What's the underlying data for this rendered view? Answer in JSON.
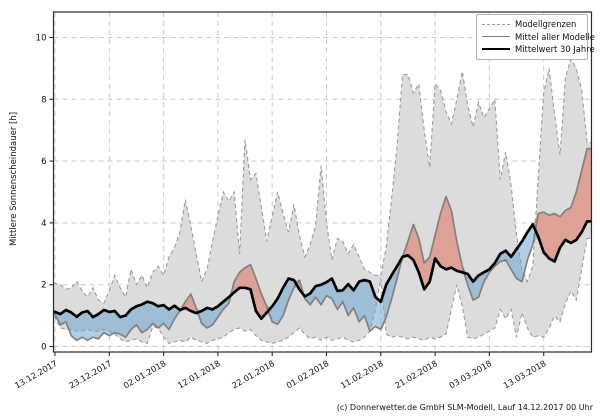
{
  "figure": {
    "footer": "(c) Donnerwetter.de GmbH SLM-Modell, Lauf 14.12.2017 00 Uhr"
  },
  "chart_data": {
    "type": "line",
    "title": "",
    "xlabel": "",
    "ylabel": "Mittlere Sonnenscheindauer [h]",
    "ylim": [
      -0.2,
      11
    ],
    "yticks": [
      0,
      2,
      4,
      6,
      8,
      10
    ],
    "grid": true,
    "x_step": "daily",
    "xtick_labels": [
      "13.12.2017",
      "23.12.2017",
      "02.01.2018",
      "12.01.2018",
      "22.01.2018",
      "01.02.2018",
      "11.02.2018",
      "21.02.2018",
      "03.03.2018",
      "13.03.2018"
    ],
    "xtick_day_indices": [
      0,
      10,
      20,
      30,
      40,
      50,
      60,
      70,
      80,
      90
    ],
    "legend": {
      "position": "upper right",
      "entries": [
        {
          "label": "Modellgrenzen",
          "style": "dashed-gray"
        },
        {
          "label": "Mittel aller Modelle",
          "style": "solid-gray"
        },
        {
          "label": "Mittelwert 30 Jahre",
          "style": "solid-black-thick"
        }
      ]
    },
    "colors": {
      "band_fill": "#dcdcdc",
      "bound_line": "#9a9a9a",
      "model_mean_line": "#808080",
      "climate_mean_line": "#000000",
      "above_normal_fill": "rgba(222,92,63,0.45)",
      "below_normal_fill": "rgba(95,160,205,0.5)",
      "grid_line": "#c9c9c9",
      "frame": "#2a2a2a"
    },
    "series": [
      {
        "name": "Modellgrenzen (oberes Limit)",
        "role": "upper_bound",
        "values": [
          2.05,
          2.0,
          1.85,
          1.9,
          2.1,
          1.8,
          1.6,
          1.9,
          1.5,
          1.4,
          1.8,
          2.3,
          1.9,
          1.6,
          2.5,
          2.0,
          2.3,
          1.9,
          2.4,
          2.6,
          2.3,
          2.9,
          3.2,
          3.7,
          4.75,
          3.9,
          3.0,
          2.1,
          2.5,
          3.4,
          4.2,
          5.0,
          4.7,
          5.0,
          3.0,
          6.7,
          5.4,
          5.6,
          4.5,
          3.4,
          4.2,
          5.0,
          4.3,
          3.7,
          4.6,
          3.6,
          2.9,
          3.3,
          3.9,
          5.85,
          4.0,
          2.8,
          3.5,
          3.4,
          3.0,
          3.3,
          2.9,
          2.5,
          2.4,
          2.3,
          2.3,
          3.2,
          4.8,
          6.5,
          8.8,
          8.8,
          8.2,
          8.5,
          7.0,
          5.8,
          8.5,
          8.3,
          7.6,
          7.2,
          8.0,
          8.9,
          7.8,
          7.1,
          7.9,
          7.4,
          7.7,
          8.0,
          5.4,
          6.3,
          5.2,
          3.6,
          2.5,
          2.1,
          2.6,
          5.5,
          8.2,
          9.0,
          7.5,
          6.2,
          8.7,
          9.3,
          9.0,
          8.3,
          6.6
        ]
      },
      {
        "name": "Modellgrenzen (unteres Limit)",
        "role": "lower_bound",
        "values": [
          0.95,
          0.6,
          0.55,
          0.55,
          0.5,
          0.5,
          0.55,
          0.5,
          0.5,
          0.55,
          0.5,
          0.4,
          0.25,
          0.15,
          0.2,
          0.25,
          0.15,
          0.1,
          0.65,
          0.6,
          0.3,
          0.1,
          0.15,
          0.2,
          0.15,
          0.3,
          0.2,
          0.15,
          0.1,
          0.2,
          0.25,
          0.3,
          0.45,
          0.55,
          0.6,
          0.5,
          0.55,
          0.35,
          0.2,
          0.15,
          0.1,
          0.15,
          0.2,
          0.3,
          0.45,
          0.6,
          0.4,
          0.25,
          0.3,
          0.2,
          0.3,
          0.2,
          0.25,
          0.3,
          0.2,
          0.15,
          0.2,
          0.3,
          0.5,
          1.2,
          2.2,
          0.4,
          0.3,
          0.35,
          0.3,
          0.25,
          0.3,
          0.25,
          0.2,
          0.3,
          0.25,
          0.3,
          0.4,
          1.2,
          2.0,
          1.3,
          0.3,
          0.25,
          0.3,
          0.4,
          0.5,
          0.6,
          1.2,
          0.9,
          1.2,
          0.3,
          1.1,
          0.6,
          0.3,
          0.35,
          0.3,
          0.6,
          1.0,
          0.8,
          1.4,
          1.8,
          1.5,
          2.5,
          3.5
        ]
      },
      {
        "name": "Mittel aller Modelle",
        "role": "model_mean",
        "values": [
          1.05,
          0.7,
          0.8,
          0.35,
          0.2,
          0.3,
          0.2,
          0.3,
          0.25,
          0.45,
          0.35,
          0.45,
          0.4,
          0.3,
          0.55,
          0.7,
          0.45,
          0.55,
          0.75,
          0.6,
          0.75,
          0.55,
          0.9,
          1.15,
          1.45,
          1.7,
          1.25,
          0.75,
          0.6,
          0.7,
          0.95,
          1.2,
          1.4,
          2.1,
          2.4,
          2.55,
          2.65,
          2.2,
          1.7,
          1.3,
          0.8,
          0.72,
          1.0,
          1.5,
          1.9,
          2.15,
          1.55,
          1.35,
          1.6,
          1.35,
          1.65,
          1.55,
          1.2,
          1.45,
          1.0,
          1.25,
          0.8,
          1.0,
          0.5,
          0.65,
          0.55,
          0.95,
          1.55,
          2.2,
          2.9,
          3.4,
          3.95,
          3.5,
          2.7,
          2.9,
          3.6,
          4.3,
          4.85,
          4.4,
          3.4,
          2.6,
          2.0,
          1.5,
          1.6,
          2.1,
          2.4,
          2.6,
          2.75,
          2.8,
          2.5,
          2.2,
          2.1,
          2.8,
          3.3,
          4.3,
          4.35,
          4.25,
          4.3,
          4.2,
          4.4,
          4.5,
          5.0,
          5.7,
          6.4
        ]
      },
      {
        "name": "Mittelwert 30 Jahre",
        "role": "climate_mean",
        "values": [
          1.12,
          1.05,
          1.18,
          1.1,
          0.96,
          1.1,
          1.15,
          0.95,
          1.05,
          1.18,
          1.12,
          1.15,
          0.95,
          1.0,
          1.2,
          1.3,
          1.36,
          1.45,
          1.4,
          1.3,
          1.34,
          1.2,
          1.32,
          1.18,
          1.25,
          1.15,
          1.08,
          1.15,
          1.25,
          1.2,
          1.3,
          1.45,
          1.6,
          1.75,
          1.9,
          1.9,
          1.85,
          1.15,
          0.9,
          1.1,
          1.3,
          1.55,
          1.9,
          2.2,
          2.15,
          1.85,
          1.62,
          1.72,
          1.95,
          2.0,
          2.08,
          2.2,
          1.8,
          1.82,
          2.02,
          1.82,
          2.1,
          2.15,
          2.1,
          1.6,
          1.45,
          2.0,
          2.31,
          2.6,
          2.9,
          2.95,
          2.8,
          2.4,
          1.85,
          2.1,
          2.85,
          2.6,
          2.5,
          2.55,
          2.45,
          2.4,
          2.35,
          2.1,
          2.3,
          2.4,
          2.5,
          2.7,
          3.0,
          3.1,
          2.9,
          3.15,
          3.4,
          3.7,
          3.95,
          3.55,
          3.05,
          2.85,
          2.75,
          3.2,
          3.45,
          3.35,
          3.45,
          3.7,
          4.05
        ]
      }
    ]
  }
}
